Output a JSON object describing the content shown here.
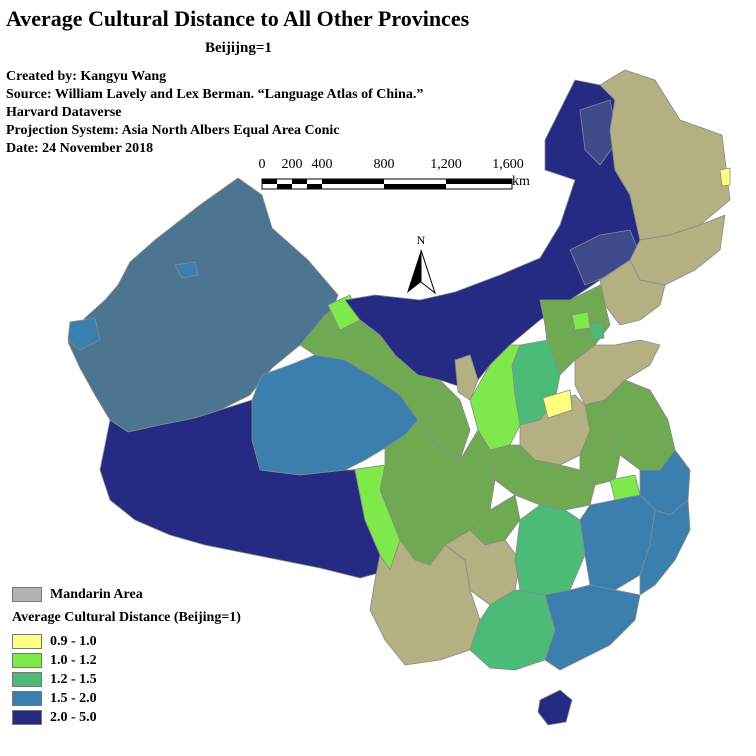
{
  "title": "Average Cultural Distance to All Other Provinces",
  "subtitle": "Beijijng=1",
  "credits": [
    "Created by: Kangyu Wang",
    "Source: William Lavely and Lex Berman. “Language Atlas of China.”",
    "Harvard Dataverse",
    "Projection System: Asia North Albers Equal Area Conic",
    "Date: 24 November 2018"
  ],
  "scale_bar": {
    "ticks": [
      "0",
      "200",
      "400",
      "800",
      "1,200",
      "1,600"
    ],
    "unit": "km"
  },
  "north_arrow_label": "N",
  "legend": {
    "mandarin_label": "Mandarin Area",
    "mandarin_color": "#b3b3b3",
    "title": "Average Cultural Distance (Beijing=1)",
    "classes": [
      {
        "label": "0.9 - 1.0",
        "color": "#ffff80"
      },
      {
        "label": "1.0 - 1.2",
        "color": "#7fe84a"
      },
      {
        "label": "1.2 - 1.5",
        "color": "#4dbb78"
      },
      {
        "label": "1.5 - 2.0",
        "color": "#3a7fad"
      },
      {
        "label": "2.0 - 5.0",
        "color": "#252a82"
      }
    ]
  },
  "map_colors": {
    "xinjiang": "#4b7590",
    "tan": "#b3b081",
    "midgreen": "#6faa52",
    "darkgreen": "#3f8f6a",
    "border": "#8a8a8a"
  }
}
